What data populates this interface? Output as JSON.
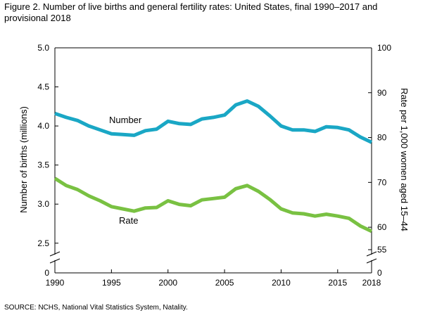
{
  "figure": {
    "title_line1": "Figure 2. Number of live births and general fertility rates: United States, final 1990–2017 and",
    "title_line2": "provisional 2018",
    "source": "SOURCE: NCHS, National Vital Statistics System, Natality."
  },
  "chart_data": {
    "type": "line",
    "xlabel": "",
    "ylabel_left": "Number of births (millions)",
    "ylabel_right": "Rate per 1,000 women aged 15–44",
    "x": [
      1990,
      1991,
      1992,
      1993,
      1994,
      1995,
      1996,
      1997,
      1998,
      1999,
      2000,
      2001,
      2002,
      2003,
      2004,
      2005,
      2006,
      2007,
      2008,
      2009,
      2010,
      2011,
      2012,
      2013,
      2014,
      2015,
      2016,
      2017,
      2018
    ],
    "x_ticks": [
      "1990",
      "1995",
      "2000",
      "2005",
      "2010",
      "2015",
      "2018"
    ],
    "y_left_ticks": [
      "0",
      "2.5",
      "3.0",
      "3.5",
      "4.0",
      "4.5",
      "5.0"
    ],
    "y_right_ticks": [
      "0",
      "55",
      "60",
      "70",
      "80",
      "90",
      "100"
    ],
    "ylim_left": [
      2.3,
      5.0
    ],
    "ylim_right": [
      55,
      100
    ],
    "axis_break": true,
    "grid": false,
    "series": [
      {
        "name": "Number",
        "axis": "left",
        "color": "#1aa7c5",
        "values": [
          4.16,
          4.11,
          4.07,
          4.0,
          3.95,
          3.9,
          3.89,
          3.88,
          3.94,
          3.96,
          4.06,
          4.03,
          4.02,
          4.09,
          4.11,
          4.14,
          4.27,
          4.32,
          4.25,
          4.13,
          4.0,
          3.95,
          3.95,
          3.93,
          3.99,
          3.98,
          3.95,
          3.86,
          3.79
        ]
      },
      {
        "name": "Rate",
        "axis": "right",
        "color": "#79c142",
        "values": [
          70.9,
          69.3,
          68.4,
          67.0,
          65.9,
          64.6,
          64.1,
          63.6,
          64.3,
          64.4,
          65.9,
          65.1,
          64.8,
          66.1,
          66.4,
          66.7,
          68.6,
          69.3,
          68.0,
          66.2,
          64.1,
          63.2,
          63.0,
          62.5,
          62.9,
          62.5,
          62.0,
          60.3,
          59.1
        ]
      }
    ]
  }
}
